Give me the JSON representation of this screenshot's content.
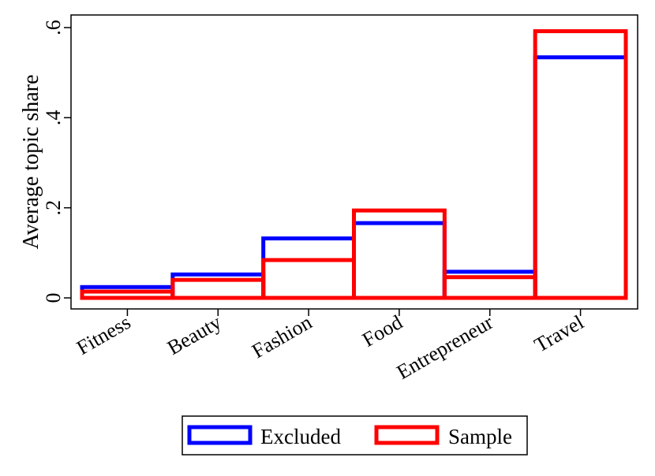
{
  "chart_data": {
    "type": "bar",
    "categories": [
      "Fitness",
      "Beauty",
      "Fashion",
      "Food",
      "Entrepreneur",
      "Travel"
    ],
    "series": [
      {
        "name": "Excluded",
        "color": "#0000ff",
        "values": [
          0.024,
          0.052,
          0.132,
          0.166,
          0.058,
          0.534
        ]
      },
      {
        "name": "Sample",
        "color": "#ff0000",
        "values": [
          0.014,
          0.04,
          0.084,
          0.194,
          0.046,
          0.592
        ]
      }
    ],
    "title": "",
    "xlabel": "",
    "ylabel": "Average topic share",
    "ylim": [
      0,
      0.6
    ],
    "yticks": [
      0,
      0.2,
      0.4,
      0.6
    ],
    "ytick_labels": [
      "0",
      ".2",
      ".4",
      ".6"
    ],
    "grid": false,
    "legend_position": "bottom"
  }
}
